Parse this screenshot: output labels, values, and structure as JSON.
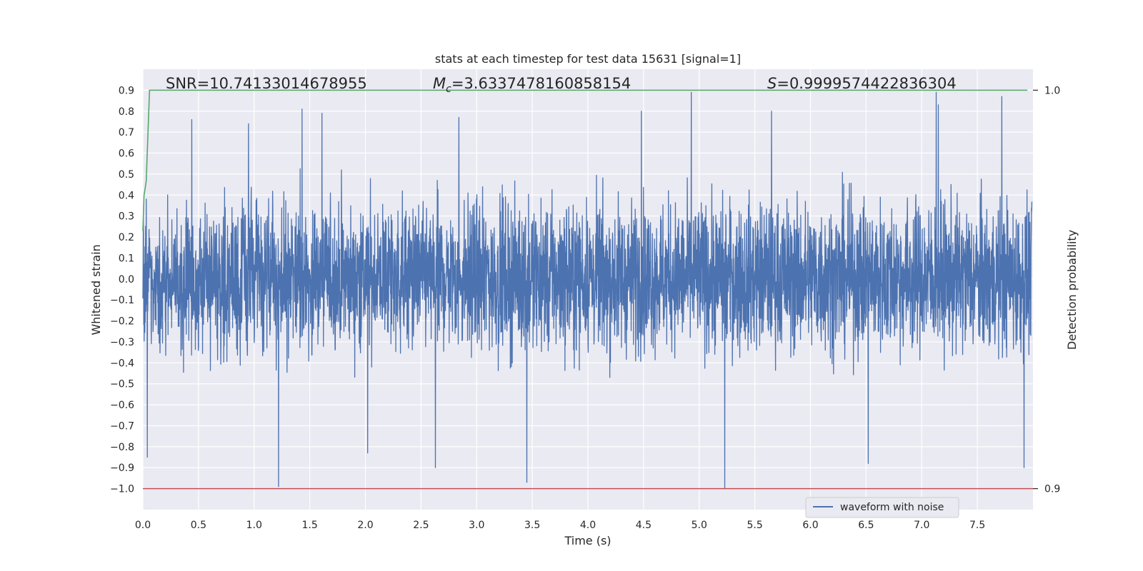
{
  "chart_data": {
    "type": "line",
    "title": "stats at each timestep for test data 15631 [signal=1]",
    "xlabel": "Time (s)",
    "ylabel": "Whitened strain",
    "ylabel_right": "Detection probability",
    "xlim": [
      0,
      8
    ],
    "ylim": [
      -1.1,
      1.0
    ],
    "ylim_right": [
      0.9,
      1.0
    ],
    "x_ticks": [
      "0.0",
      "0.5",
      "1.0",
      "1.5",
      "2.0",
      "2.5",
      "3.0",
      "3.5",
      "4.0",
      "4.5",
      "5.0",
      "5.5",
      "6.0",
      "6.5",
      "7.0",
      "7.5"
    ],
    "y_ticks": [
      "0.9",
      "0.8",
      "0.7",
      "0.6",
      "0.5",
      "0.4",
      "0.3",
      "0.2",
      "0.1",
      "0.0",
      "−0.1",
      "−0.2",
      "−0.3",
      "−0.4",
      "−0.5",
      "−0.6",
      "−0.7",
      "−0.8",
      "−0.9",
      "−1.0"
    ],
    "y_ticks_right": [
      "1.0",
      "0.9"
    ],
    "grid": true,
    "legend": {
      "placement": "lower-right",
      "entries": [
        "waveform with noise"
      ]
    },
    "annotations": {
      "snr": "SNR=10.74133014678955",
      "mc_symbol": "M",
      "mc_sub": "c",
      "mc_value": "=3.6337478160858154",
      "s_symbol": "S",
      "s_value": "=0.9999574422836304"
    },
    "series": [
      {
        "name": "waveform with noise",
        "color": "#4c72b0",
        "x_range": [
          0,
          7.99
        ],
        "envelope_positive": [
          0.52,
          0.62,
          0.65,
          0.63,
          0.66,
          0.63,
          0.65,
          0.64,
          0.67,
          0.64,
          0.66,
          0.66,
          0.68,
          0.66,
          0.64,
          0.65
        ],
        "envelope_negative": [
          -0.55,
          -0.58,
          -0.62,
          -0.6,
          -0.58,
          -0.6,
          -0.62,
          -0.61,
          -0.62,
          -0.58,
          -0.61,
          -0.6,
          -0.62,
          -0.6,
          -0.61,
          -0.62
        ],
        "peaks": [
          {
            "x": 0.04,
            "y": -0.85
          },
          {
            "x": 0.44,
            "y": 0.76
          },
          {
            "x": 0.95,
            "y": 0.74
          },
          {
            "x": 1.22,
            "y": -0.99
          },
          {
            "x": 1.43,
            "y": 0.81
          },
          {
            "x": 1.61,
            "y": 0.79
          },
          {
            "x": 2.02,
            "y": -0.83
          },
          {
            "x": 2.63,
            "y": -0.9
          },
          {
            "x": 2.84,
            "y": 0.77
          },
          {
            "x": 3.45,
            "y": -0.97
          },
          {
            "x": 4.48,
            "y": 0.8
          },
          {
            "x": 4.93,
            "y": 0.89
          },
          {
            "x": 5.23,
            "y": -1.0
          },
          {
            "x": 5.65,
            "y": 0.8
          },
          {
            "x": 6.52,
            "y": -0.88
          },
          {
            "x": 7.13,
            "y": 0.89
          },
          {
            "x": 7.15,
            "y": 0.83
          },
          {
            "x": 7.72,
            "y": 0.87
          },
          {
            "x": 7.92,
            "y": -0.9
          }
        ]
      },
      {
        "name": "detection probability",
        "color": "#55a868",
        "axis": "right",
        "x": [
          0.0,
          0.01,
          0.03,
          0.06,
          7.95
        ],
        "y": [
          0.9647,
          0.9735,
          0.9771,
          1.0,
          1.0
        ]
      },
      {
        "name": "threshold",
        "color": "#c44e52",
        "axis": "right",
        "x": [
          0.0,
          8.0
        ],
        "y": [
          0.9,
          0.9
        ]
      }
    ]
  }
}
